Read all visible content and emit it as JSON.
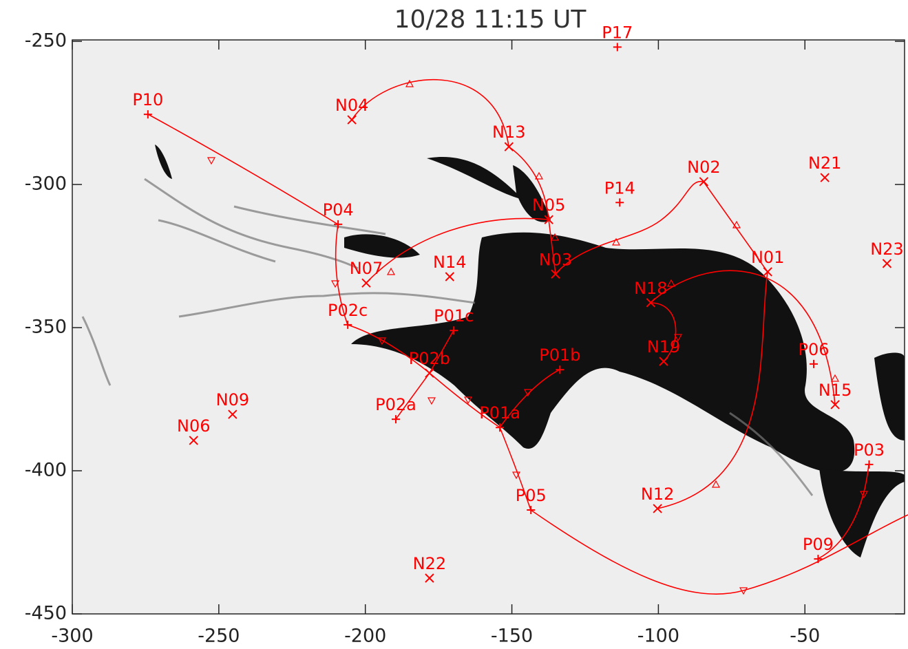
{
  "chart_data": {
    "type": "scatter",
    "title": "10/28 11:15 UT",
    "xlim": [
      -300,
      -16
    ],
    "ylim": [
      -450,
      -249.5
    ],
    "xticks": [
      -300,
      -250,
      -200,
      -150,
      -100,
      -50
    ],
    "yticks": [
      -250,
      -300,
      -350,
      -400,
      -450
    ],
    "color": "#ff0000",
    "points": [
      {
        "label": "P17",
        "x": -114,
        "y": -252,
        "marker": "+"
      },
      {
        "label": "P10",
        "x": -274.2,
        "y": -275.5,
        "marker": "+"
      },
      {
        "label": "N04",
        "x": -204.6,
        "y": -277.4,
        "marker": "x"
      },
      {
        "label": "N13",
        "x": -151,
        "y": -286.8,
        "marker": "x"
      },
      {
        "label": "N02",
        "x": -84.5,
        "y": -299,
        "marker": "x"
      },
      {
        "label": "N21",
        "x": -43.2,
        "y": -297.6,
        "marker": "x"
      },
      {
        "label": "P14",
        "x": -113.2,
        "y": -306.3,
        "marker": "+"
      },
      {
        "label": "N05",
        "x": -137.4,
        "y": -312.3,
        "marker": "x"
      },
      {
        "label": "P04",
        "x": -209.3,
        "y": -313.9,
        "marker": "+"
      },
      {
        "label": "N23",
        "x": -22,
        "y": -327.6,
        "marker": "x"
      },
      {
        "label": "N03",
        "x": -135.1,
        "y": -331.3,
        "marker": "x"
      },
      {
        "label": "N01",
        "x": -62.7,
        "y": -330.5,
        "marker": "x"
      },
      {
        "label": "N07",
        "x": -199.7,
        "y": -334.4,
        "marker": "x"
      },
      {
        "label": "N14",
        "x": -171.2,
        "y": -332.2,
        "marker": "x"
      },
      {
        "label": "N18",
        "x": -102.6,
        "y": -341.3,
        "marker": "x"
      },
      {
        "label": "P02c",
        "x": -206,
        "y": -349,
        "marker": "+"
      },
      {
        "label": "P01c",
        "x": -169.8,
        "y": -351,
        "marker": "+"
      },
      {
        "label": "N19",
        "x": -98.2,
        "y": -361.8,
        "marker": "x"
      },
      {
        "label": "P06",
        "x": -47,
        "y": -362.7,
        "marker": "+"
      },
      {
        "label": "P02b",
        "x": -178.1,
        "y": -365.9,
        "marker": "x"
      },
      {
        "label": "P01b",
        "x": -133.6,
        "y": -364.7,
        "marker": "+"
      },
      {
        "label": "N15",
        "x": -39.7,
        "y": -376.9,
        "marker": "x"
      },
      {
        "label": "N09",
        "x": -245.3,
        "y": -380.3,
        "marker": "x"
      },
      {
        "label": "P02a",
        "x": -189.6,
        "y": -382,
        "marker": "+"
      },
      {
        "label": "N06",
        "x": -258.6,
        "y": -389.4,
        "marker": "x"
      },
      {
        "label": "P01a",
        "x": -154.1,
        "y": -384.9,
        "marker": "+"
      },
      {
        "label": "P03",
        "x": -28.1,
        "y": -397.8,
        "marker": "+"
      },
      {
        "label": "P05",
        "x": -143.5,
        "y": -413.7,
        "marker": "+"
      },
      {
        "label": "N12",
        "x": -100.3,
        "y": -413.2,
        "marker": "x"
      },
      {
        "label": "P09",
        "x": -45.5,
        "y": -430.8,
        "marker": "+"
      },
      {
        "label": "N22",
        "x": -178.1,
        "y": -437.5,
        "marker": "x"
      }
    ]
  }
}
